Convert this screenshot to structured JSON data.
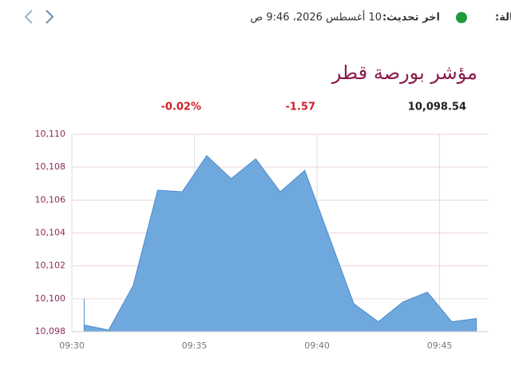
{
  "header": {
    "status_label": "الحالة:",
    "update_label": "اخر تحديث:",
    "update_time": "10 أغسطس 2026، 9:46 ص"
  },
  "stats": {
    "value": "10,098.54",
    "change": "-1.57",
    "change_percent": "-0.02%"
  },
  "chart_data": {
    "type": "area",
    "title": "مؤشر بورصة قطر",
    "color": "#6fa8dc",
    "line_color": "#4a8cd0",
    "x": [
      570.5,
      570.5,
      571.5,
      572.5,
      573.5,
      574.5,
      575.5,
      576.5,
      577.5,
      578.5,
      579.5,
      581.5,
      582.5,
      583.5,
      584.5,
      585.5,
      586.5
    ],
    "values": [
      10100.0,
      10098.4,
      10098.1,
      10100.8,
      10106.6,
      10106.5,
      10108.7,
      10107.3,
      10108.5,
      10106.5,
      10107.8,
      10099.7,
      10098.6,
      10099.8,
      10100.4,
      10098.6,
      10098.8
    ],
    "xlim": [
      570,
      587
    ],
    "xticks": [
      {
        "value": 570,
        "label": "09:30"
      },
      {
        "value": 575,
        "label": "09:35"
      },
      {
        "value": 580,
        "label": "09:40"
      },
      {
        "value": 585,
        "label": "09:45"
      }
    ],
    "ylim": [
      10098,
      10110
    ],
    "yticks": [
      {
        "value": 10098,
        "label": "10,098"
      },
      {
        "value": 10100,
        "label": "10,100"
      },
      {
        "value": 10102,
        "label": "10,102"
      },
      {
        "value": 10104,
        "label": "10,104"
      },
      {
        "value": 10106,
        "label": "10,106"
      },
      {
        "value": 10108,
        "label": "10,108"
      },
      {
        "value": 10110,
        "label": "10,110"
      }
    ],
    "grid": true
  }
}
